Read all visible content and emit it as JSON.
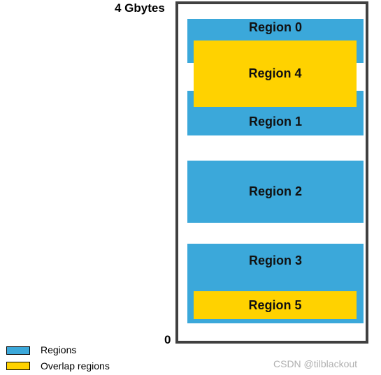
{
  "axis": {
    "top_label": "4 Gbytes",
    "bottom_label": "0"
  },
  "regions": {
    "r0": "Region 0",
    "r1": "Region 1",
    "r2": "Region 2",
    "r3": "Region 3",
    "r4": "Region 4",
    "r5": "Region 5"
  },
  "legend": [
    {
      "label": "Regions",
      "color": "#3ba8da"
    },
    {
      "label": "Overlap regions",
      "color": "#ffd200"
    }
  ],
  "watermark": "CSDN @tilblackout"
}
